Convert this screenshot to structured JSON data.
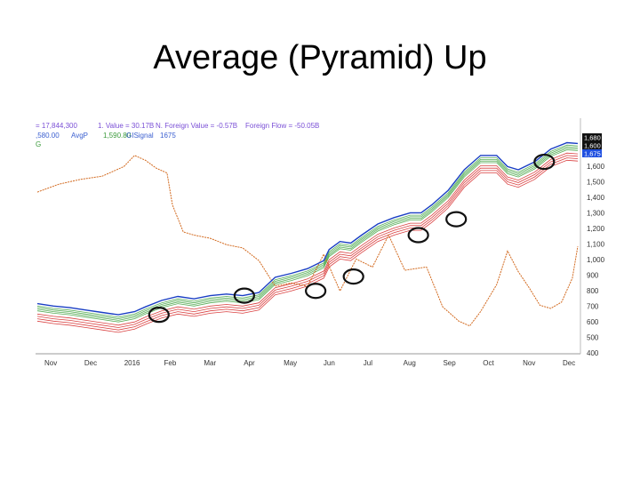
{
  "slide": {
    "title": "Average (Pyramid) Up"
  },
  "chart_data": {
    "type": "line",
    "legend_line1": {
      "a": "= 17,844,300",
      "b": "1. Value = 30.17B",
      "c": "N. Foreign Value = -0.57B",
      "d": "Foreign Flow = -50.05B"
    },
    "legend_line2": {
      "a": ",580.00",
      "b": "AvgP",
      "c": "1,590.80",
      "d": "GISignal",
      "e": "1675"
    },
    "legend_line3": "G",
    "x_tick_labels": [
      "Nov",
      "Dec",
      "2016",
      "Feb",
      "Mar",
      "Apr",
      "May",
      "Jun",
      "Jul",
      "Aug",
      "Sep",
      "Oct",
      "Nov",
      "Dec"
    ],
    "y_tick_labels": [
      "1,600",
      "1,500",
      "1,400",
      "1,300",
      "1,200",
      "1,100",
      "1,000",
      "900",
      "800",
      "700",
      "600",
      "500",
      "400"
    ],
    "ylim": [
      400,
      1750
    ],
    "price_badges": [
      {
        "label": "1,680",
        "color": "#111111"
      },
      {
        "label": "1,600",
        "color": "#111111"
      },
      {
        "label": "1,675",
        "color": "#1f4fe0"
      }
    ],
    "colors": {
      "price": "#1a3fc4",
      "foreign_flow": "#d2691e",
      "short_mas": "#2e9a2e",
      "long_mas": "#d42020",
      "circle": "#111111"
    },
    "series": [
      {
        "name": "Price",
        "x": [
          0,
          3,
          6,
          9,
          12,
          15,
          18,
          20,
          23,
          26,
          29,
          32,
          35,
          38,
          41,
          44,
          47,
          50,
          53,
          54,
          56,
          58,
          60,
          63,
          66,
          69,
          71,
          73,
          76,
          79,
          82,
          85,
          87,
          89,
          92,
          95,
          98,
          100
        ],
        "values": [
          670,
          655,
          645,
          630,
          615,
          600,
          620,
          650,
          690,
          715,
          700,
          720,
          730,
          720,
          740,
          835,
          860,
          890,
          940,
          1010,
          1060,
          1050,
          1100,
          1170,
          1210,
          1240,
          1240,
          1290,
          1380,
          1510,
          1600,
          1600,
          1530,
          1510,
          1560,
          1640,
          1680,
          1675
        ]
      },
      {
        "name": "Foreign Flow",
        "x": [
          0,
          4,
          8,
          12,
          16,
          18,
          20,
          22,
          24,
          25,
          27,
          29,
          32,
          35,
          38,
          41,
          44,
          47,
          50,
          53,
          56,
          59,
          62,
          65,
          68,
          72,
          75,
          78,
          80,
          82,
          85,
          87,
          89,
          91,
          93,
          95,
          97,
          99,
          100
        ],
        "values": [
          1370,
          1420,
          1450,
          1470,
          1530,
          1600,
          1570,
          1520,
          1490,
          1290,
          1120,
          1100,
          1080,
          1040,
          1020,
          940,
          780,
          800,
          780,
          980,
          750,
          950,
          900,
          1100,
          880,
          900,
          650,
          560,
          530,
          620,
          790,
          1000,
          870,
          770,
          660,
          640,
          680,
          830,
          1030
        ]
      }
    ],
    "short_mas": {
      "offsets": [
        -90,
        -70,
        -50,
        -30
      ]
    },
    "long_mas": {
      "offsets": [
        -110,
        -95,
        -80,
        -65
      ]
    },
    "circles": [
      {
        "x": 22.5,
        "y": 600
      },
      {
        "x": 38.3,
        "y": 720
      },
      {
        "x": 51.5,
        "y": 750
      },
      {
        "x": 58.5,
        "y": 840
      },
      {
        "x": 70.5,
        "y": 1100
      },
      {
        "x": 77.5,
        "y": 1200
      },
      {
        "x": 93.8,
        "y": 1560
      }
    ]
  }
}
